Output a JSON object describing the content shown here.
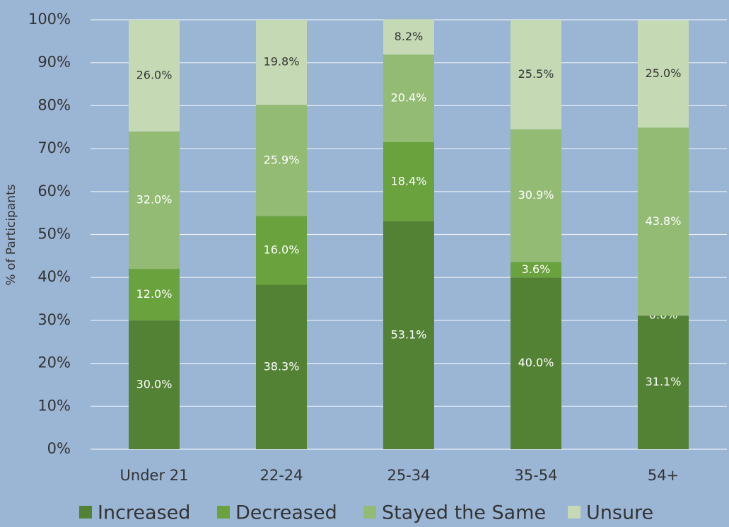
{
  "chart_data": {
    "type": "stacked_bar",
    "categories": [
      "Under 21",
      "22-24",
      "25-34",
      "35-54",
      "54+"
    ],
    "series": [
      {
        "name": "Increased",
        "color": "#548235",
        "values": [
          30.0,
          38.3,
          53.1,
          40.0,
          31.1
        ],
        "value_labels": [
          "30.0%",
          "38.3%",
          "53.1%",
          "40.0%",
          "31.1%"
        ]
      },
      {
        "name": "Decreased",
        "color": "#6aa23e",
        "values": [
          12.0,
          16.0,
          18.4,
          3.6,
          0.0
        ],
        "value_labels": [
          "12.0%",
          "16.0%",
          "18.4%",
          "3.6%",
          "0.0%"
        ]
      },
      {
        "name": "Stayed the Same",
        "color": "#93bb73",
        "values": [
          32.0,
          25.9,
          20.4,
          30.9,
          43.8
        ],
        "value_labels": [
          "32.0%",
          "25.9%",
          "20.4%",
          "30.9%",
          "43.8%"
        ]
      },
      {
        "name": "Unsure",
        "color": "#c5dab4",
        "values": [
          26.0,
          19.8,
          8.2,
          25.5,
          25.0
        ],
        "value_labels": [
          "26.0%",
          "19.8%",
          "8.2%",
          "25.5%",
          "25.0%"
        ]
      }
    ],
    "y_label": "% of Participants",
    "ylim": [
      0,
      100
    ],
    "yticks": [
      {
        "value": 0,
        "label": "0%"
      },
      {
        "value": 10,
        "label": "10%"
      },
      {
        "value": 20,
        "label": "20%"
      },
      {
        "value": 30,
        "label": "30%"
      },
      {
        "value": 40,
        "label": "40%"
      },
      {
        "value": 50,
        "label": "50%"
      },
      {
        "value": 60,
        "label": "60%"
      },
      {
        "value": 70,
        "label": "70%"
      },
      {
        "value": 80,
        "label": "80%"
      },
      {
        "value": 90,
        "label": "90%"
      },
      {
        "value": 100,
        "label": "100%"
      }
    ],
    "grid": true,
    "legend": "bottom"
  }
}
